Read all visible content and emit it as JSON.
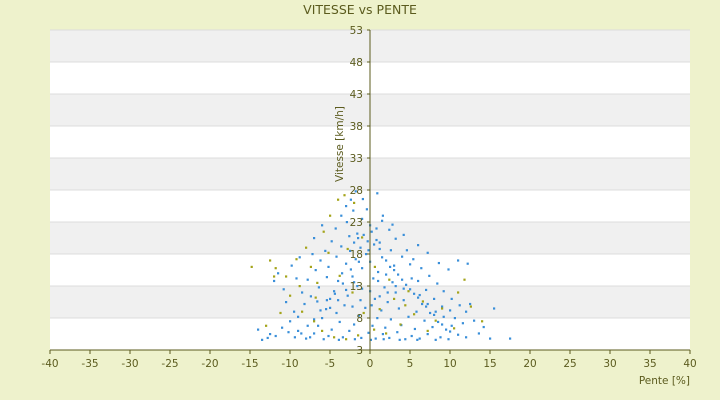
{
  "chart_data": {
    "type": "scatter",
    "title": "VITESSE vs PENTE",
    "xlabel": "Pente [%]",
    "ylabel": "Vitesse [km/h]",
    "xlim": [
      -40,
      40
    ],
    "ylim": [
      3,
      53
    ],
    "x_ticks": [
      "-40",
      "-35",
      "-30",
      "-25",
      "-20",
      "-15",
      "-10",
      "-5",
      "0",
      "5",
      "10",
      "15",
      "20",
      "25",
      "30",
      "35",
      "40"
    ],
    "y_ticks": [
      "3",
      "8",
      "13",
      "18",
      "23",
      "28",
      "33",
      "38",
      "43",
      "48",
      "53"
    ],
    "grid": "horizontal",
    "colors": {
      "background": "#eef2cc",
      "plot": "#ffffff",
      "band": "#f0f0f0",
      "axis": "#5b5b1e",
      "series_main": "#3a8fd9",
      "series_alt": "#a4a41a"
    },
    "series": [
      {
        "color": "#3a8fd9",
        "points": [
          [
            -1.5,
            20.5
          ],
          [
            -0.8,
            21.0
          ],
          [
            0.2,
            21.5
          ],
          [
            -2.0,
            19.8
          ],
          [
            -0.3,
            20.0
          ],
          [
            0.8,
            20.2
          ],
          [
            -1.2,
            19.0
          ],
          [
            0.5,
            19.5
          ],
          [
            1.2,
            18.8
          ],
          [
            -2.5,
            18.5
          ],
          [
            -0.5,
            18.0
          ],
          [
            1.5,
            17.5
          ],
          [
            2.0,
            17.0
          ],
          [
            -1.8,
            17.2
          ],
          [
            0.0,
            16.8
          ],
          [
            2.5,
            16.0
          ],
          [
            3.0,
            15.5
          ],
          [
            -3.0,
            16.5
          ],
          [
            -1.0,
            15.8
          ],
          [
            1.0,
            15.2
          ],
          [
            3.5,
            14.8
          ],
          [
            4.0,
            14.0
          ],
          [
            -3.5,
            15.0
          ],
          [
            -2.2,
            14.5
          ],
          [
            0.4,
            14.2
          ],
          [
            2.8,
            13.6
          ],
          [
            4.5,
            13.2
          ],
          [
            5.0,
            12.5
          ],
          [
            -4.0,
            13.8
          ],
          [
            -1.6,
            13.0
          ],
          [
            1.8,
            12.8
          ],
          [
            3.2,
            12.0
          ],
          [
            5.5,
            11.8
          ],
          [
            6.0,
            11.2
          ],
          [
            -4.5,
            12.2
          ],
          [
            -2.8,
            11.5
          ],
          [
            0.6,
            11.0
          ],
          [
            2.2,
            10.5
          ],
          [
            4.2,
            10.8
          ],
          [
            6.5,
            10.2
          ],
          [
            7.0,
            9.8
          ],
          [
            -5.0,
            11.0
          ],
          [
            -3.2,
            10.0
          ],
          [
            -0.6,
            9.6
          ],
          [
            1.4,
            9.2
          ],
          [
            3.6,
            9.5
          ],
          [
            5.8,
            9.0
          ],
          [
            7.5,
            8.8
          ],
          [
            8.0,
            8.5
          ],
          [
            -5.5,
            9.4
          ],
          [
            -4.2,
            8.8
          ],
          [
            -1.4,
            8.4
          ],
          [
            0.9,
            8.0
          ],
          [
            2.6,
            7.8
          ],
          [
            4.8,
            8.2
          ],
          [
            6.8,
            7.6
          ],
          [
            8.5,
            7.4
          ],
          [
            9.0,
            7.0
          ],
          [
            -6.0,
            8.0
          ],
          [
            -3.8,
            7.4
          ],
          [
            -2.0,
            7.0
          ],
          [
            0.3,
            6.8
          ],
          [
            1.9,
            6.5
          ],
          [
            3.9,
            6.9
          ],
          [
            5.6,
            6.3
          ],
          [
            7.8,
            6.6
          ],
          [
            9.5,
            6.2
          ],
          [
            10.0,
            5.9
          ],
          [
            -6.5,
            6.8
          ],
          [
            -4.8,
            6.2
          ],
          [
            -2.6,
            6.0
          ],
          [
            -0.2,
            5.7
          ],
          [
            1.6,
            5.5
          ],
          [
            3.4,
            5.8
          ],
          [
            5.2,
            5.2
          ],
          [
            7.2,
            5.5
          ],
          [
            8.8,
            5.0
          ],
          [
            11.0,
            5.4
          ],
          [
            -7.0,
            5.6
          ],
          [
            -5.2,
            5.2
          ],
          [
            -3.4,
            5.0
          ],
          [
            -1.1,
            4.9
          ],
          [
            0.7,
            4.8
          ],
          [
            2.4,
            4.9
          ],
          [
            4.4,
            4.7
          ],
          [
            6.2,
            4.8
          ],
          [
            8.2,
            4.6
          ],
          [
            12.0,
            5.0
          ],
          [
            -7.5,
            5.0
          ],
          [
            -5.8,
            4.7
          ],
          [
            -3.9,
            4.6
          ],
          [
            -1.9,
            4.7
          ],
          [
            0.1,
            4.6
          ],
          [
            1.7,
            4.7
          ],
          [
            3.7,
            4.6
          ],
          [
            5.9,
            4.6
          ],
          [
            9.8,
            4.7
          ],
          [
            15.0,
            4.8
          ],
          [
            17.5,
            4.8
          ],
          [
            -8.0,
            4.8
          ],
          [
            -9.0,
            6.0
          ],
          [
            -10.0,
            7.5
          ],
          [
            -11.0,
            6.5
          ],
          [
            -12.5,
            5.5
          ],
          [
            -13.5,
            4.6
          ],
          [
            -14.0,
            6.2
          ],
          [
            -9.5,
            9.0
          ],
          [
            -10.5,
            10.5
          ],
          [
            -8.5,
            12.0
          ],
          [
            -7.8,
            14.0
          ],
          [
            -6.8,
            15.5
          ],
          [
            -6.2,
            17.0
          ],
          [
            -5.6,
            18.5
          ],
          [
            -4.8,
            20.0
          ],
          [
            -4.3,
            22.0
          ],
          [
            -3.6,
            24.0
          ],
          [
            -3.0,
            25.5
          ],
          [
            -2.4,
            26.5
          ],
          [
            -1.8,
            27.8
          ],
          [
            -2.9,
            23.0
          ],
          [
            -5.2,
            16.0
          ],
          [
            -7.2,
            18.0
          ],
          [
            -8.8,
            17.5
          ],
          [
            -9.8,
            16.2
          ],
          [
            -11.5,
            15.0
          ],
          [
            -12.0,
            13.8
          ],
          [
            -10.8,
            12.5
          ],
          [
            -9.2,
            14.2
          ],
          [
            -6.0,
            22.5
          ],
          [
            -7.0,
            20.5
          ],
          [
            -1.0,
            23.5
          ],
          [
            0.0,
            22.5
          ],
          [
            0.8,
            22.0
          ],
          [
            -2.1,
            24.8
          ],
          [
            0.9,
            27.5
          ],
          [
            1.5,
            23.2
          ],
          [
            2.4,
            21.8
          ],
          [
            3.2,
            20.4
          ],
          [
            4.6,
            18.6
          ],
          [
            5.4,
            17.2
          ],
          [
            6.4,
            15.8
          ],
          [
            7.4,
            14.6
          ],
          [
            8.4,
            13.4
          ],
          [
            9.2,
            12.2
          ],
          [
            10.2,
            11.0
          ],
          [
            11.2,
            10.0
          ],
          [
            12.0,
            9.0
          ],
          [
            10.6,
            8.0
          ],
          [
            11.6,
            7.2
          ],
          [
            13.0,
            7.6
          ],
          [
            14.2,
            6.6
          ],
          [
            13.6,
            5.6
          ],
          [
            15.5,
            9.5
          ],
          [
            12.5,
            10.2
          ],
          [
            12.2,
            16.5
          ],
          [
            11.0,
            17.0
          ],
          [
            9.8,
            15.6
          ],
          [
            8.6,
            16.6
          ],
          [
            7.2,
            18.2
          ],
          [
            6.0,
            19.4
          ],
          [
            4.2,
            21.0
          ],
          [
            2.8,
            22.6
          ],
          [
            1.6,
            24.0
          ],
          [
            -0.4,
            25.0
          ],
          [
            -0.9,
            26.6
          ],
          [
            -1.6,
            21.2
          ],
          [
            -2.6,
            20.8
          ],
          [
            -3.6,
            19.2
          ],
          [
            -4.2,
            17.6
          ],
          [
            -5.4,
            14.4
          ],
          [
            -6.4,
            12.8
          ],
          [
            -7.4,
            11.4
          ],
          [
            -8.2,
            10.2
          ],
          [
            -9.0,
            8.2
          ],
          [
            -10.2,
            5.8
          ],
          [
            -11.8,
            5.2
          ],
          [
            -12.8,
            4.9
          ],
          [
            -6.6,
            10.6
          ],
          [
            -5.0,
            9.6
          ],
          [
            -4.0,
            10.8
          ],
          [
            -3.0,
            12.4
          ],
          [
            -2.0,
            13.6
          ],
          [
            -1.0,
            12.6
          ],
          [
            0.0,
            12.2
          ],
          [
            1.0,
            13.8
          ],
          [
            2.0,
            14.8
          ],
          [
            3.0,
            16.2
          ],
          [
            4.0,
            17.6
          ],
          [
            5.0,
            16.4
          ],
          [
            6.0,
            13.8
          ],
          [
            7.0,
            12.4
          ],
          [
            8.0,
            11.0
          ],
          [
            9.0,
            9.8
          ],
          [
            10.0,
            9.2
          ],
          [
            2.6,
            18.6
          ],
          [
            1.2,
            19.8
          ],
          [
            -0.2,
            18.6
          ],
          [
            -1.4,
            16.8
          ],
          [
            -2.4,
            15.6
          ],
          [
            -3.4,
            13.4
          ],
          [
            -4.4,
            11.8
          ],
          [
            -5.4,
            10.8
          ],
          [
            -6.2,
            9.2
          ],
          [
            -7.0,
            7.8
          ],
          [
            -7.8,
            6.8
          ],
          [
            -8.6,
            5.6
          ],
          [
            -9.4,
            5.0
          ],
          [
            -2.2,
            9.8
          ],
          [
            -1.2,
            10.8
          ],
          [
            0.2,
            10.0
          ],
          [
            1.2,
            11.4
          ],
          [
            2.2,
            12.0
          ],
          [
            3.2,
            13.0
          ],
          [
            4.2,
            12.6
          ],
          [
            5.2,
            14.2
          ],
          [
            6.2,
            11.6
          ],
          [
            7.2,
            10.2
          ],
          [
            8.2,
            9.0
          ],
          [
            9.2,
            8.2
          ],
          [
            10.2,
            6.8
          ]
        ]
      },
      {
        "color": "#a4a41a",
        "points": [
          [
            -14.8,
            16.0
          ],
          [
            -12.5,
            17.0
          ],
          [
            -11.8,
            15.8
          ],
          [
            -10.5,
            14.5
          ],
          [
            -9.2,
            17.2
          ],
          [
            -8.0,
            19.0
          ],
          [
            -7.4,
            16.0
          ],
          [
            -6.6,
            13.5
          ],
          [
            -5.8,
            21.5
          ],
          [
            -5.0,
            24.0
          ],
          [
            -4.0,
            26.5
          ],
          [
            -3.2,
            27.2
          ],
          [
            -2.0,
            26.0
          ],
          [
            -12.0,
            14.5
          ],
          [
            -10.0,
            11.5
          ],
          [
            -8.5,
            9.0
          ],
          [
            -7.0,
            7.5
          ],
          [
            -6.0,
            6.0
          ],
          [
            -4.5,
            5.0
          ],
          [
            -3.0,
            4.7
          ],
          [
            -1.5,
            5.3
          ],
          [
            0.5,
            6.2
          ],
          [
            2.0,
            5.6
          ],
          [
            3.8,
            7.0
          ],
          [
            5.5,
            8.6
          ],
          [
            7.2,
            6.0
          ],
          [
            9.0,
            9.5
          ],
          [
            11.0,
            12.0
          ],
          [
            11.8,
            14.0
          ],
          [
            12.6,
            9.8
          ],
          [
            14.0,
            7.5
          ],
          [
            10.5,
            6.4
          ],
          [
            8.2,
            7.6
          ],
          [
            6.6,
            10.6
          ],
          [
            4.8,
            12.2
          ],
          [
            3.0,
            11.0
          ],
          [
            1.2,
            9.4
          ],
          [
            -0.8,
            8.8
          ],
          [
            -2.2,
            12.0
          ],
          [
            -3.8,
            14.6
          ],
          [
            -5.2,
            18.2
          ],
          [
            -6.8,
            11.2
          ],
          [
            -8.8,
            13.0
          ],
          [
            -11.2,
            8.8
          ],
          [
            -13.0,
            6.8
          ],
          [
            -2.8,
            18.8
          ],
          [
            -1.0,
            20.6
          ],
          [
            0.6,
            16.0
          ],
          [
            2.4,
            14.0
          ],
          [
            4.4,
            10.0
          ]
        ]
      }
    ]
  }
}
